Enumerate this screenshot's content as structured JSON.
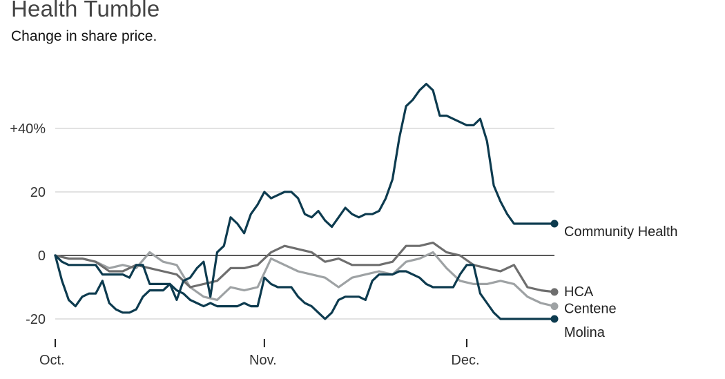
{
  "chart_data": {
    "type": "line",
    "title": "Health Tumble",
    "subtitle": "Change in share price.",
    "xlabel": "",
    "ylabel": "",
    "ylim": [
      -25,
      58
    ],
    "y_ticks": [
      {
        "value": 40,
        "label": "+40%"
      },
      {
        "value": 20,
        "label": "20"
      },
      {
        "value": 0,
        "label": "0"
      },
      {
        "value": -20,
        "label": "-20"
      }
    ],
    "x_ticks": [
      {
        "value": 0,
        "label": "Oct."
      },
      {
        "value": 31,
        "label": "Nov."
      },
      {
        "value": 61,
        "label": "Dec."
      }
    ],
    "grid": true,
    "colors": {
      "Community Health": "#0d3b4f",
      "HCA": "#6e6e6e",
      "Centene": "#9ea2a4",
      "Molina": "#0d3b4f",
      "gridline": "#d9d9d9",
      "zeroline": "#222222"
    },
    "series": [
      {
        "name": "Community Health",
        "x": [
          0,
          1,
          2,
          3,
          4,
          5,
          6,
          7,
          8,
          9,
          10,
          11,
          12,
          13,
          14,
          15,
          16,
          17,
          18,
          19,
          20,
          21,
          22,
          23,
          24,
          25,
          26,
          27,
          28,
          29,
          30,
          31,
          32,
          33,
          34,
          35,
          36,
          37,
          38,
          39,
          40,
          41,
          42,
          43,
          44,
          45,
          46,
          47,
          48,
          49,
          50,
          51,
          52,
          53,
          54,
          55,
          56,
          57,
          58,
          59,
          60,
          61,
          62,
          63,
          64,
          65,
          66,
          67,
          68,
          69,
          70,
          71,
          72,
          73,
          74
        ],
        "values": [
          0,
          -2,
          -3,
          -3,
          -3,
          -3,
          -3,
          -6,
          -6,
          -6,
          -6,
          -7,
          -3,
          -3,
          -9,
          -9,
          -9,
          -9,
          -14,
          -8,
          -7,
          -4,
          -2,
          -13,
          1,
          3,
          12,
          10,
          7,
          13,
          16,
          20,
          18,
          19,
          20,
          20,
          18,
          13,
          12,
          14,
          11,
          9,
          12,
          15,
          13,
          12,
          13,
          13,
          14,
          18,
          24,
          37,
          47,
          49,
          52,
          54,
          52,
          44,
          44,
          43,
          42,
          41,
          41,
          43,
          36,
          22,
          17,
          13,
          10,
          10,
          10,
          10,
          10,
          10,
          10
        ],
        "end_x": 74
      },
      {
        "name": "HCA",
        "x": [
          0,
          2,
          4,
          6,
          8,
          10,
          12,
          14,
          16,
          18,
          20,
          22,
          24,
          26,
          28,
          30,
          32,
          34,
          36,
          38,
          40,
          42,
          44,
          46,
          48,
          50,
          52,
          54,
          56,
          58,
          60,
          62,
          64,
          66,
          68,
          70,
          72,
          74
        ],
        "values": [
          0,
          -1,
          -1,
          -2,
          -5,
          -5,
          -3,
          -4,
          -5,
          -6,
          -10,
          -9,
          -8,
          -4,
          -4,
          -3,
          1,
          3,
          2,
          1,
          -2,
          -1,
          -3,
          -3,
          -3,
          -2,
          3,
          3,
          4,
          1,
          0,
          -3,
          -4,
          -5,
          -3,
          -10,
          -11,
          -11.5
        ],
        "end_x": 74
      },
      {
        "name": "Centene",
        "x": [
          0,
          2,
          4,
          6,
          8,
          10,
          12,
          14,
          16,
          18,
          20,
          22,
          24,
          26,
          28,
          30,
          32,
          34,
          36,
          38,
          40,
          42,
          44,
          46,
          48,
          50,
          52,
          54,
          56,
          58,
          60,
          62,
          64,
          66,
          68,
          70,
          72,
          74
        ],
        "values": [
          0,
          -1,
          -1,
          -2,
          -4,
          -3,
          -4,
          1,
          -2,
          -3,
          -10,
          -13,
          -14,
          -10,
          -11,
          -10,
          -1,
          -3,
          -5,
          -6,
          -7,
          -10,
          -7,
          -6,
          -5,
          -6,
          -2,
          -1,
          1,
          -4,
          -8,
          -9,
          -9,
          -8,
          -9,
          -13,
          -15,
          -16
        ],
        "end_x": 74
      },
      {
        "name": "Molina",
        "x": [
          0,
          1,
          2,
          3,
          4,
          5,
          6,
          7,
          8,
          9,
          10,
          11,
          12,
          13,
          14,
          15,
          16,
          17,
          18,
          19,
          20,
          21,
          22,
          23,
          24,
          25,
          26,
          27,
          28,
          29,
          30,
          31,
          32,
          33,
          34,
          35,
          36,
          37,
          38,
          39,
          40,
          41,
          42,
          43,
          44,
          45,
          46,
          47,
          48,
          49,
          50,
          51,
          52,
          53,
          54,
          55,
          56,
          57,
          58,
          59,
          60,
          61,
          62,
          63,
          64,
          65,
          66,
          67,
          68,
          69,
          70,
          71,
          72,
          73,
          74
        ],
        "values": [
          0,
          -8,
          -14,
          -16,
          -13,
          -12,
          -12,
          -8,
          -15,
          -17,
          -18,
          -18,
          -17,
          -13,
          -11,
          -11,
          -11,
          -9,
          -11,
          -12,
          -14,
          -15,
          -16,
          -15,
          -16,
          -16,
          -16,
          -16,
          -15,
          -16,
          -16,
          -7,
          -9,
          -10,
          -10,
          -10,
          -13,
          -15,
          -16,
          -18,
          -20,
          -18,
          -14,
          -13,
          -13,
          -13,
          -14,
          -8,
          -6,
          -6,
          -6,
          -5,
          -5,
          -6,
          -7,
          -9,
          -10,
          -10,
          -10,
          -10,
          -6,
          -3,
          -3,
          -12,
          -15,
          -18,
          -20,
          -20,
          -20,
          -20,
          -20,
          -20,
          -20,
          -20,
          -20
        ],
        "end_x": 74
      }
    ],
    "legend": "inline-right-end-labels"
  }
}
